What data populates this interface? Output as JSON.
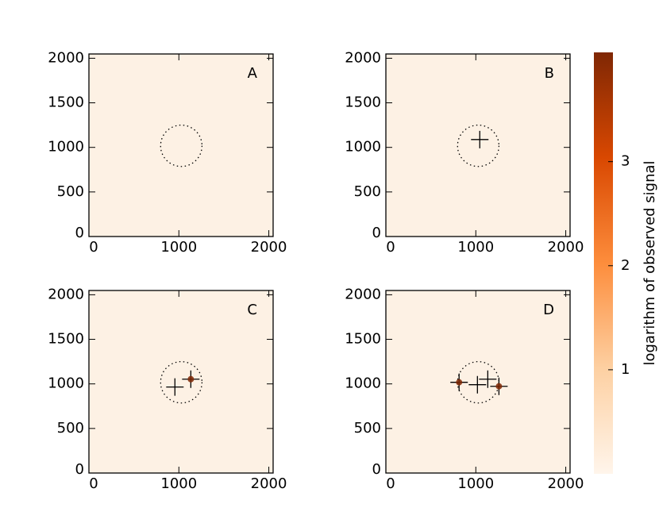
{
  "chart_data": [
    {
      "type": "scatter",
      "label": "A",
      "xlim": [
        0,
        2048
      ],
      "ylim": [
        0,
        2048
      ],
      "xticks": [
        0,
        1000,
        2000
      ],
      "yticks": [
        0,
        500,
        1000,
        1500,
        2000
      ],
      "background_color": "#fdf1e4",
      "circle": {
        "x": 1027,
        "y": 1018,
        "r": 230
      },
      "series": [
        {
          "color": "#000000",
          "x": [],
          "y": []
        },
        {
          "color": "#7f2704",
          "x": [],
          "y": []
        }
      ]
    },
    {
      "type": "scatter",
      "label": "B",
      "xlim": [
        0,
        2048
      ],
      "ylim": [
        0,
        2048
      ],
      "xticks": [
        0,
        1000,
        2000
      ],
      "yticks": [
        0,
        500,
        1000,
        1500,
        2000
      ],
      "background_color": "#fdf1e4",
      "circle": {
        "x": 1027,
        "y": 1018,
        "r": 230
      },
      "series": [
        {
          "color": "#000000",
          "x": [
            1044
          ],
          "y": [
            1088
          ]
        },
        {
          "color": "#7f2704",
          "x": [],
          "y": []
        }
      ]
    },
    {
      "type": "scatter",
      "label": "C",
      "xlim": [
        0,
        2048
      ],
      "ylim": [
        0,
        2048
      ],
      "xticks": [
        0,
        1000,
        2000
      ],
      "yticks": [
        0,
        500,
        1000,
        1500,
        2000
      ],
      "background_color": "#fdf1e4",
      "circle": {
        "x": 1027,
        "y": 1018,
        "r": 230
      },
      "series": [
        {
          "color": "#000000",
          "x": [
            956,
            1133
          ],
          "y": [
            965,
            1053
          ]
        },
        {
          "color": "#7f2704",
          "x": [
            1133
          ],
          "y": [
            1053
          ]
        }
      ]
    },
    {
      "type": "scatter",
      "label": "D",
      "xlim": [
        0,
        2048
      ],
      "ylim": [
        0,
        2048
      ],
      "xticks": [
        0,
        1000,
        2000
      ],
      "yticks": [
        0,
        500,
        1000,
        1500,
        2000
      ],
      "background_color": "#fdf1e4",
      "circle": {
        "x": 1027,
        "y": 1018,
        "r": 230
      },
      "series": [
        {
          "color": "#000000",
          "x": [
            814,
            1018,
            1133,
            1257
          ],
          "y": [
            1018,
            991,
            1053,
            973
          ]
        },
        {
          "color": "#7f2704",
          "x": [
            814,
            1257
          ],
          "y": [
            1018,
            973
          ]
        }
      ]
    },
    {
      "type": "colorbar",
      "label": "logarithm of observed signal",
      "ylim": [
        0,
        4.05
      ],
      "yticks": [
        1,
        2,
        3
      ],
      "colormap": [
        "#fff5eb",
        "#fdd0a2",
        "#fd8d3c",
        "#d94801",
        "#7f2704"
      ]
    }
  ]
}
